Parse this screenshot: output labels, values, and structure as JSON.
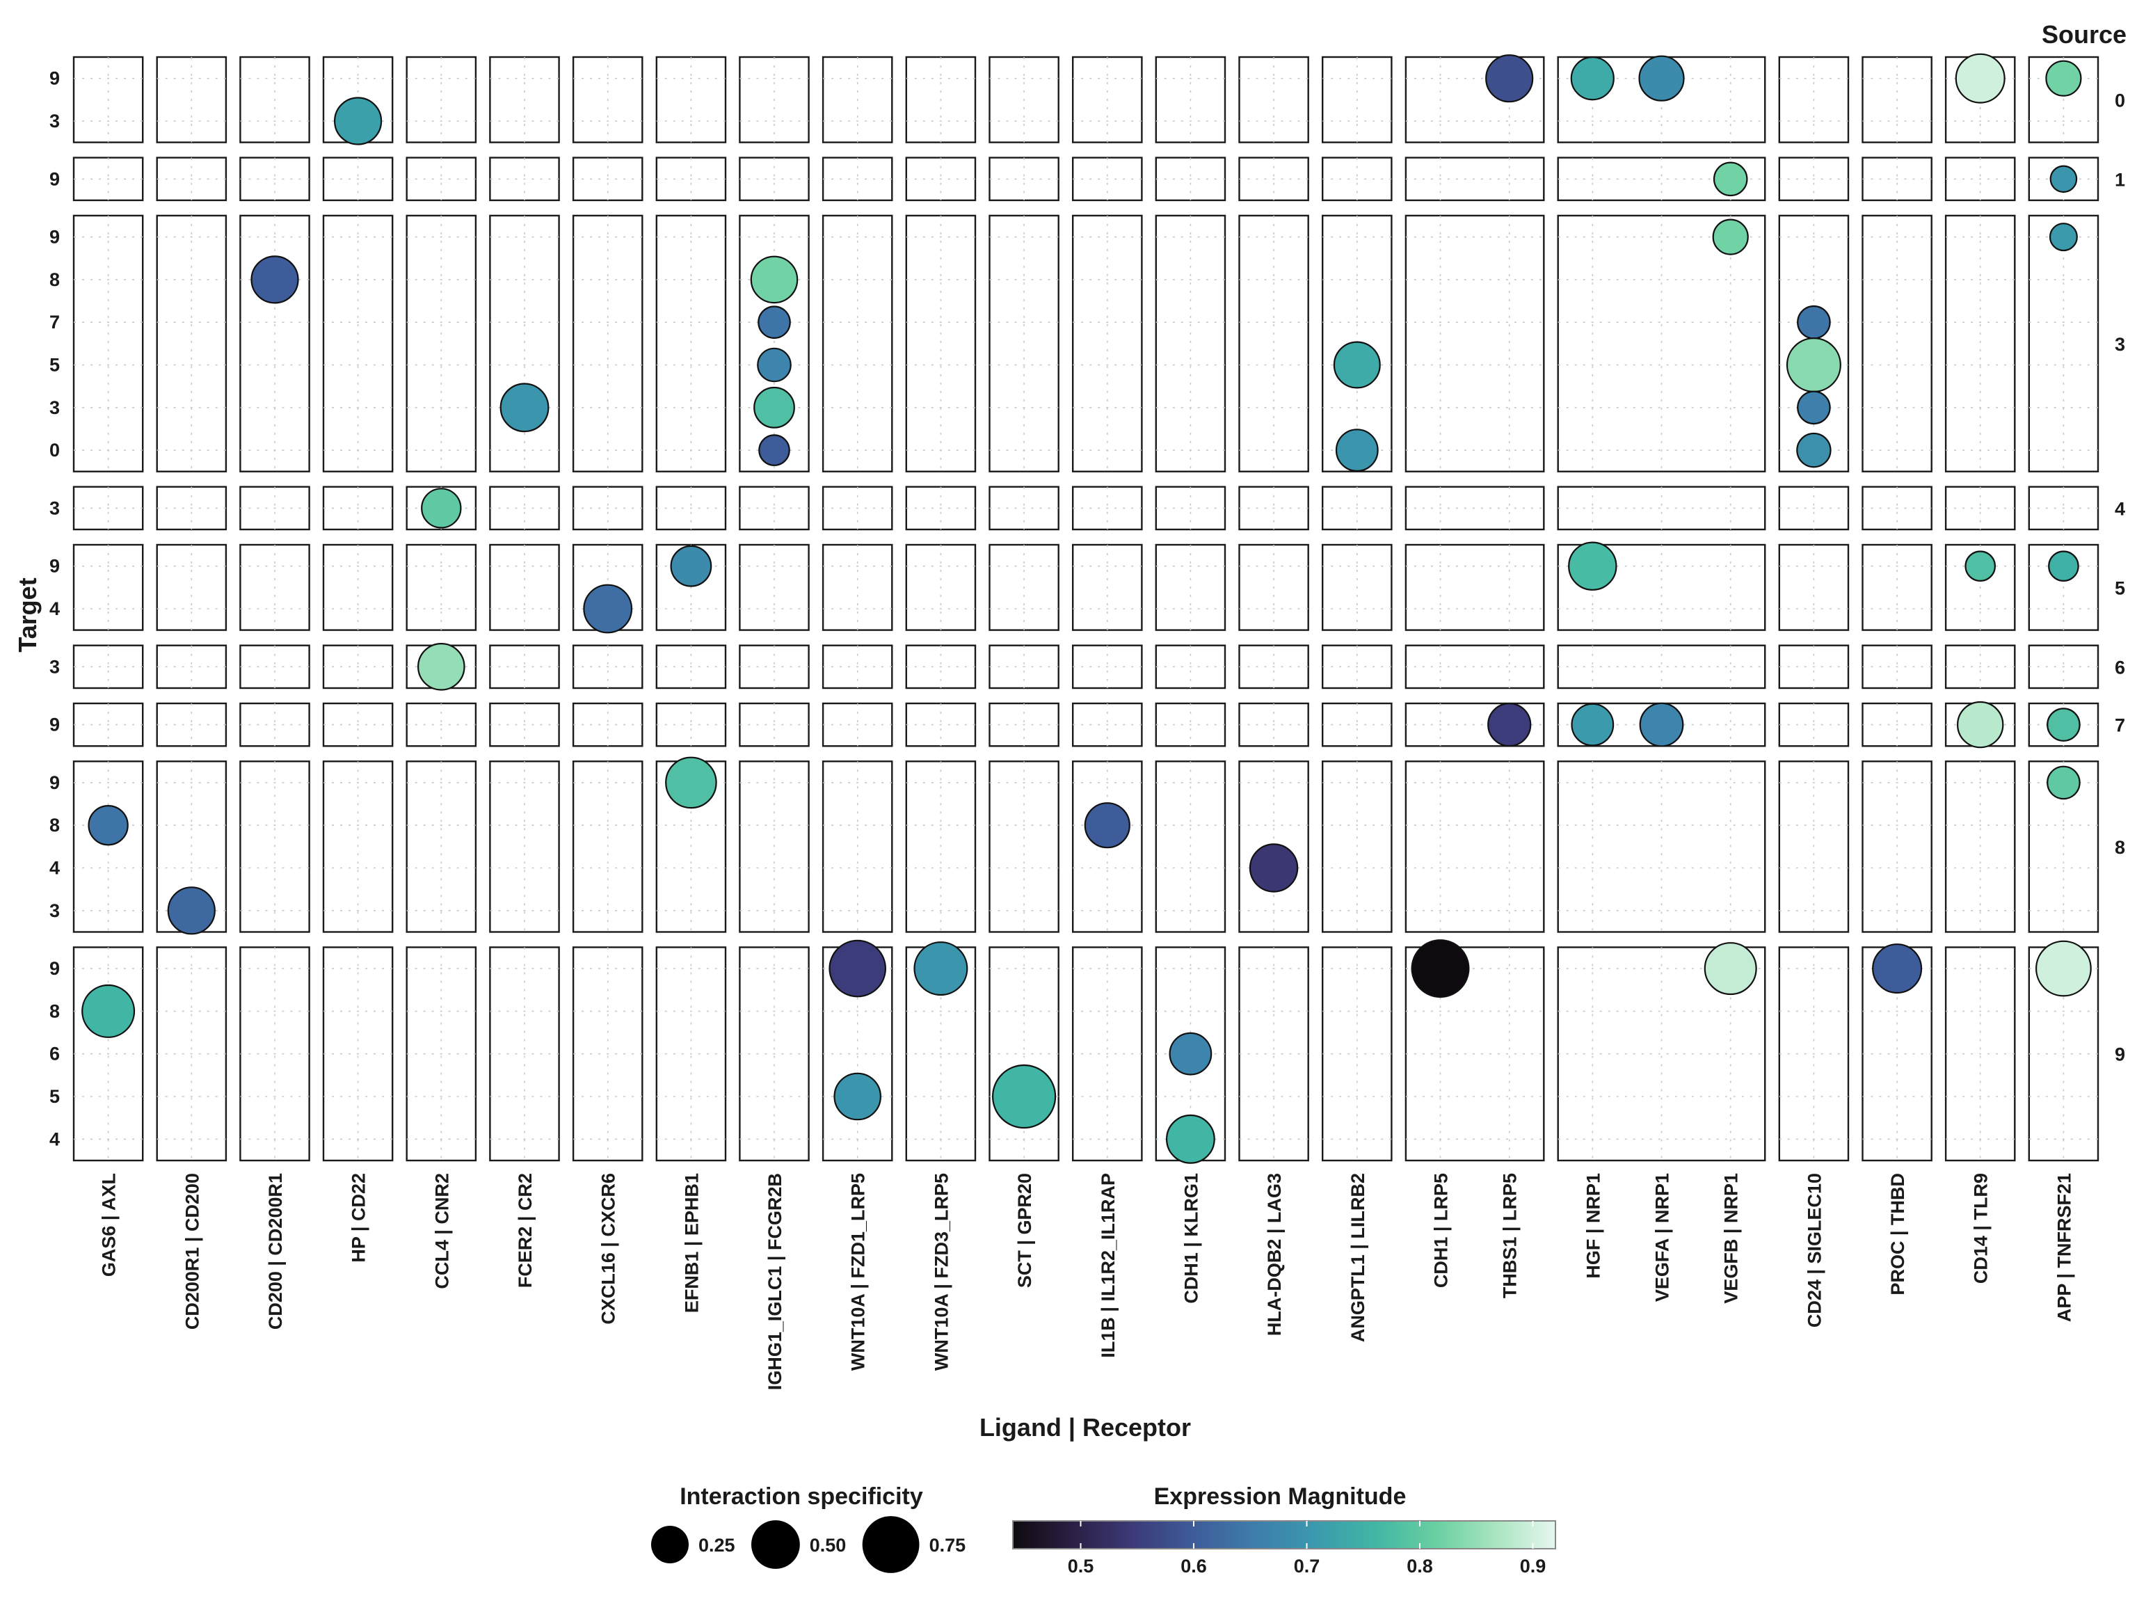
{
  "chart_data": {
    "type": "scatter",
    "xlabel": "Ligand | Receptor",
    "ylabel": "Target",
    "facet_row_title": "Source",
    "size_legend": {
      "title": "Interaction specificity",
      "breaks": [
        0.25,
        0.5,
        0.75
      ],
      "labels": [
        "0.25",
        "0.50",
        "0.75"
      ]
    },
    "color_legend": {
      "title": "Expression Magnitude",
      "range": [
        0.44,
        0.92
      ],
      "breaks": [
        0.5,
        0.6,
        0.7,
        0.8,
        0.9
      ],
      "labels": [
        "0.5",
        "0.6",
        "0.7",
        "0.8",
        "0.9"
      ],
      "palette": [
        "#0f0a10",
        "#2c1f45",
        "#3c3a78",
        "#3d5c99",
        "#3e7cab",
        "#3b99ad",
        "#41b6a5",
        "#68cfa1",
        "#a9e4c0",
        "#e6f7ee"
      ]
    },
    "column_groups": [
      {
        "pairs": [
          "GAS6 | AXL"
        ]
      },
      {
        "pairs": [
          "CD200R1 | CD200"
        ]
      },
      {
        "pairs": [
          "CD200 | CD200R1"
        ]
      },
      {
        "pairs": [
          "HP | CD22"
        ]
      },
      {
        "pairs": [
          "CCL4 | CNR2"
        ]
      },
      {
        "pairs": [
          "FCER2 | CR2"
        ]
      },
      {
        "pairs": [
          "CXCL16 | CXCR6"
        ]
      },
      {
        "pairs": [
          "EFNB1 | EPHB1"
        ]
      },
      {
        "pairs": [
          "IGHG1_IGLC1 | FCGR2B"
        ]
      },
      {
        "pairs": [
          "WNT10A | FZD1_LRP5"
        ]
      },
      {
        "pairs": [
          "WNT10A | FZD3_LRP5"
        ]
      },
      {
        "pairs": [
          "SCT | GPR20"
        ]
      },
      {
        "pairs": [
          "IL1B | IL1R2_IL1RAP"
        ]
      },
      {
        "pairs": [
          "CDH1 | KLRG1"
        ]
      },
      {
        "pairs": [
          "HLA-DQB2 | LAG3"
        ]
      },
      {
        "pairs": [
          "ANGPTL1 | LILRB2"
        ]
      },
      {
        "pairs": [
          "CDH1 | LRP5",
          "THBS1 | LRP5"
        ]
      },
      {
        "pairs": [
          "HGF | NRP1",
          "VEGFA | NRP1",
          "VEGFB | NRP1"
        ]
      },
      {
        "pairs": [
          "CD24 | SIGLEC10"
        ]
      },
      {
        "pairs": [
          "PROC | THBD"
        ]
      },
      {
        "pairs": [
          "CD14 | TLR9"
        ]
      },
      {
        "pairs": [
          "APP | TNFRSF21"
        ]
      }
    ],
    "row_facets": [
      {
        "source": "0",
        "targets": [
          "3",
          "9"
        ]
      },
      {
        "source": "1",
        "targets": [
          "9"
        ]
      },
      {
        "source": "3",
        "targets": [
          "0",
          "3",
          "5",
          "7",
          "8",
          "9"
        ]
      },
      {
        "source": "4",
        "targets": [
          "3"
        ]
      },
      {
        "source": "5",
        "targets": [
          "4",
          "9"
        ]
      },
      {
        "source": "6",
        "targets": [
          "3"
        ]
      },
      {
        "source": "7",
        "targets": [
          "9"
        ]
      },
      {
        "source": "8",
        "targets": [
          "3",
          "4",
          "8",
          "9"
        ]
      },
      {
        "source": "9",
        "targets": [
          "4",
          "5",
          "6",
          "8",
          "9"
        ]
      }
    ],
    "points": [
      {
        "source": "0",
        "target": "3",
        "pair": "HP | CD22",
        "specificity": 0.45,
        "magnitude": 0.72
      },
      {
        "source": "0",
        "target": "9",
        "pair": "THBS1 | LRP5",
        "specificity": 0.45,
        "magnitude": 0.58
      },
      {
        "source": "0",
        "target": "9",
        "pair": "HGF | NRP1",
        "specificity": 0.35,
        "magnitude": 0.74
      },
      {
        "source": "0",
        "target": "9",
        "pair": "VEGFA | NRP1",
        "specificity": 0.4,
        "magnitude": 0.68
      },
      {
        "source": "0",
        "target": "9",
        "pair": "CD14 | TLR9",
        "specificity": 0.5,
        "magnitude": 0.9
      },
      {
        "source": "0",
        "target": "9",
        "pair": "APP | TNFRSF21",
        "specificity": 0.2,
        "magnitude": 0.82
      },
      {
        "source": "1",
        "target": "9",
        "pair": "VEGFB | NRP1",
        "specificity": 0.17,
        "magnitude": 0.82
      },
      {
        "source": "1",
        "target": "9",
        "pair": "APP | TNFRSF21",
        "specificity": 0.08,
        "magnitude": 0.7
      },
      {
        "source": "3",
        "target": "8",
        "pair": "CD200 | CD200R1",
        "specificity": 0.45,
        "magnitude": 0.6
      },
      {
        "source": "3",
        "target": "8",
        "pair": "IGHG1_IGLC1 | FCGR2B",
        "specificity": 0.44,
        "magnitude": 0.82
      },
      {
        "source": "3",
        "target": "7",
        "pair": "IGHG1_IGLC1 | FCGR2B",
        "specificity": 0.15,
        "magnitude": 0.64
      },
      {
        "source": "3",
        "target": "5",
        "pair": "IGHG1_IGLC1 | FCGR2B",
        "specificity": 0.17,
        "magnitude": 0.67
      },
      {
        "source": "3",
        "target": "3",
        "pair": "IGHG1_IGLC1 | FCGR2B",
        "specificity": 0.3,
        "magnitude": 0.78
      },
      {
        "source": "3",
        "target": "0",
        "pair": "IGHG1_IGLC1 | FCGR2B",
        "specificity": 0.13,
        "magnitude": 0.6
      },
      {
        "source": "3",
        "target": "3",
        "pair": "FCER2 | CR2",
        "specificity": 0.48,
        "magnitude": 0.7
      },
      {
        "source": "3",
        "target": "5",
        "pair": "ANGPTL1 | LILRB2",
        "specificity": 0.43,
        "magnitude": 0.74
      },
      {
        "source": "3",
        "target": "0",
        "pair": "ANGPTL1 | LILRB2",
        "specificity": 0.33,
        "magnitude": 0.7
      },
      {
        "source": "3",
        "target": "9",
        "pair": "VEGFB | NRP1",
        "specificity": 0.2,
        "magnitude": 0.82
      },
      {
        "source": "3",
        "target": "9",
        "pair": "APP | TNFRSF21",
        "specificity": 0.09,
        "magnitude": 0.71
      },
      {
        "source": "3",
        "target": "7",
        "pair": "CD24 | SIGLEC10",
        "specificity": 0.16,
        "magnitude": 0.64
      },
      {
        "source": "3",
        "target": "5",
        "pair": "CD24 | SIGLEC10",
        "specificity": 0.64,
        "magnitude": 0.84
      },
      {
        "source": "3",
        "target": "3",
        "pair": "CD24 | SIGLEC10",
        "specificity": 0.16,
        "magnitude": 0.66
      },
      {
        "source": "3",
        "target": "0",
        "pair": "CD24 | SIGLEC10",
        "specificity": 0.18,
        "magnitude": 0.69
      },
      {
        "source": "4",
        "target": "3",
        "pair": "CCL4 | CNR2",
        "specificity": 0.28,
        "magnitude": 0.8
      },
      {
        "source": "5",
        "target": "9",
        "pair": "EFNB1 | EPHB1",
        "specificity": 0.3,
        "magnitude": 0.68
      },
      {
        "source": "5",
        "target": "4",
        "pair": "CXCL16 | CXCR6",
        "specificity": 0.48,
        "magnitude": 0.63
      },
      {
        "source": "5",
        "target": "9",
        "pair": "HGF | NRP1",
        "specificity": 0.47,
        "magnitude": 0.77
      },
      {
        "source": "5",
        "target": "9",
        "pair": "CD14 | TLR9",
        "specificity": 0.12,
        "magnitude": 0.78
      },
      {
        "source": "5",
        "target": "9",
        "pair": "APP | TNFRSF21",
        "specificity": 0.12,
        "magnitude": 0.75
      },
      {
        "source": "6",
        "target": "3",
        "pair": "CCL4 | CNR2",
        "specificity": 0.44,
        "magnitude": 0.85
      },
      {
        "source": "7",
        "target": "9",
        "pair": "THBS1 | LRP5",
        "specificity": 0.35,
        "magnitude": 0.55
      },
      {
        "source": "7",
        "target": "9",
        "pair": "HGF | NRP1",
        "specificity": 0.33,
        "magnitude": 0.71
      },
      {
        "source": "7",
        "target": "9",
        "pair": "VEGFA | NRP1",
        "specificity": 0.36,
        "magnitude": 0.67
      },
      {
        "source": "7",
        "target": "9",
        "pair": "CD14 | TLR9",
        "specificity": 0.42,
        "magnitude": 0.88
      },
      {
        "source": "7",
        "target": "9",
        "pair": "APP | TNFRSF21",
        "specificity": 0.16,
        "magnitude": 0.78
      },
      {
        "source": "8",
        "target": "8",
        "pair": "GAS6 | AXL",
        "specificity": 0.28,
        "magnitude": 0.64
      },
      {
        "source": "8",
        "target": "3",
        "pair": "CD200R1 | CD200",
        "specificity": 0.45,
        "magnitude": 0.62
      },
      {
        "source": "8",
        "target": "9",
        "pair": "EFNB1 | EPHB1",
        "specificity": 0.55,
        "magnitude": 0.78
      },
      {
        "source": "8",
        "target": "8",
        "pair": "IL1B | IL1R2_IL1RAP",
        "specificity": 0.4,
        "magnitude": 0.6
      },
      {
        "source": "8",
        "target": "4",
        "pair": "HLA-DQB2 | LAG3",
        "specificity": 0.47,
        "magnitude": 0.54
      },
      {
        "source": "8",
        "target": "9",
        "pair": "APP | TNFRSF21",
        "specificity": 0.16,
        "magnitude": 0.8
      },
      {
        "source": "9",
        "target": "8",
        "pair": "GAS6 | AXL",
        "specificity": 0.6,
        "magnitude": 0.76
      },
      {
        "source": "9",
        "target": "9",
        "pair": "WNT10A | FZD1_LRP5",
        "specificity": 0.72,
        "magnitude": 0.55
      },
      {
        "source": "9",
        "target": "5",
        "pair": "WNT10A | FZD1_LRP5",
        "specificity": 0.44,
        "magnitude": 0.7
      },
      {
        "source": "9",
        "target": "9",
        "pair": "WNT10A | FZD3_LRP5",
        "specificity": 0.62,
        "magnitude": 0.7
      },
      {
        "source": "9",
        "target": "5",
        "pair": "SCT | GPR20",
        "specificity": 0.95,
        "magnitude": 0.76
      },
      {
        "source": "9",
        "target": "6",
        "pair": "CDH1 | KLRG1",
        "specificity": 0.33,
        "magnitude": 0.67
      },
      {
        "source": "9",
        "target": "4",
        "pair": "CDH1 | KLRG1",
        "specificity": 0.48,
        "magnitude": 0.76
      },
      {
        "source": "9",
        "target": "9",
        "pair": "CDH1 | LRP5",
        "specificity": 0.75,
        "magnitude": 0.44
      },
      {
        "source": "9",
        "target": "9",
        "pair": "VEGFB | NRP1",
        "specificity": 0.58,
        "magnitude": 0.89
      },
      {
        "source": "9",
        "target": "9",
        "pair": "PROC | THBD",
        "specificity": 0.5,
        "magnitude": 0.6
      },
      {
        "source": "9",
        "target": "9",
        "pair": "APP | TNFRSF21",
        "specificity": 0.68,
        "magnitude": 0.9
      }
    ]
  }
}
